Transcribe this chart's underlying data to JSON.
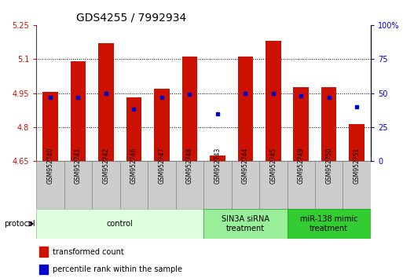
{
  "title": "GDS4255 / 7992934",
  "samples": [
    "GSM952740",
    "GSM952741",
    "GSM952742",
    "GSM952746",
    "GSM952747",
    "GSM952748",
    "GSM952743",
    "GSM952744",
    "GSM952745",
    "GSM952749",
    "GSM952750",
    "GSM952751"
  ],
  "bar_values": [
    4.955,
    5.09,
    5.17,
    4.93,
    4.97,
    5.11,
    4.675,
    5.11,
    5.18,
    4.975,
    4.975,
    4.815
  ],
  "percentile_values": [
    47,
    47,
    50,
    38,
    47,
    49,
    35,
    50,
    50,
    48,
    47,
    40
  ],
  "ymin": 4.65,
  "ymax": 5.25,
  "yticks": [
    4.65,
    4.8,
    4.95,
    5.1,
    5.25
  ],
  "ytick_labels": [
    "4.65",
    "4.8",
    "4.95",
    "5.1",
    "5.25"
  ],
  "right_yticks": [
    0,
    25,
    50,
    75,
    100
  ],
  "right_yticklabels": [
    "0",
    "25",
    "50",
    "75",
    "100%"
  ],
  "bar_color": "#cc1100",
  "dot_color": "#0000cc",
  "bar_bottom": 4.65,
  "groups": [
    {
      "label": "control",
      "start": 0,
      "end": 6,
      "color": "#ddffdd",
      "border": "#aaccaa"
    },
    {
      "label": "SIN3A siRNA\ntreatment",
      "start": 6,
      "end": 9,
      "color": "#99ee99",
      "border": "#55aa55"
    },
    {
      "label": "miR-138 mimic\ntreatment",
      "start": 9,
      "end": 12,
      "color": "#33cc33",
      "border": "#22aa22"
    }
  ],
  "protocol_label": "protocol",
  "legend_items": [
    {
      "color": "#cc1100",
      "label": "transformed count"
    },
    {
      "color": "#0000cc",
      "label": "percentile rank within the sample"
    }
  ],
  "title_fontsize": 10,
  "axis_fontsize": 7,
  "label_fontsize": 6,
  "group_fontsize": 7
}
